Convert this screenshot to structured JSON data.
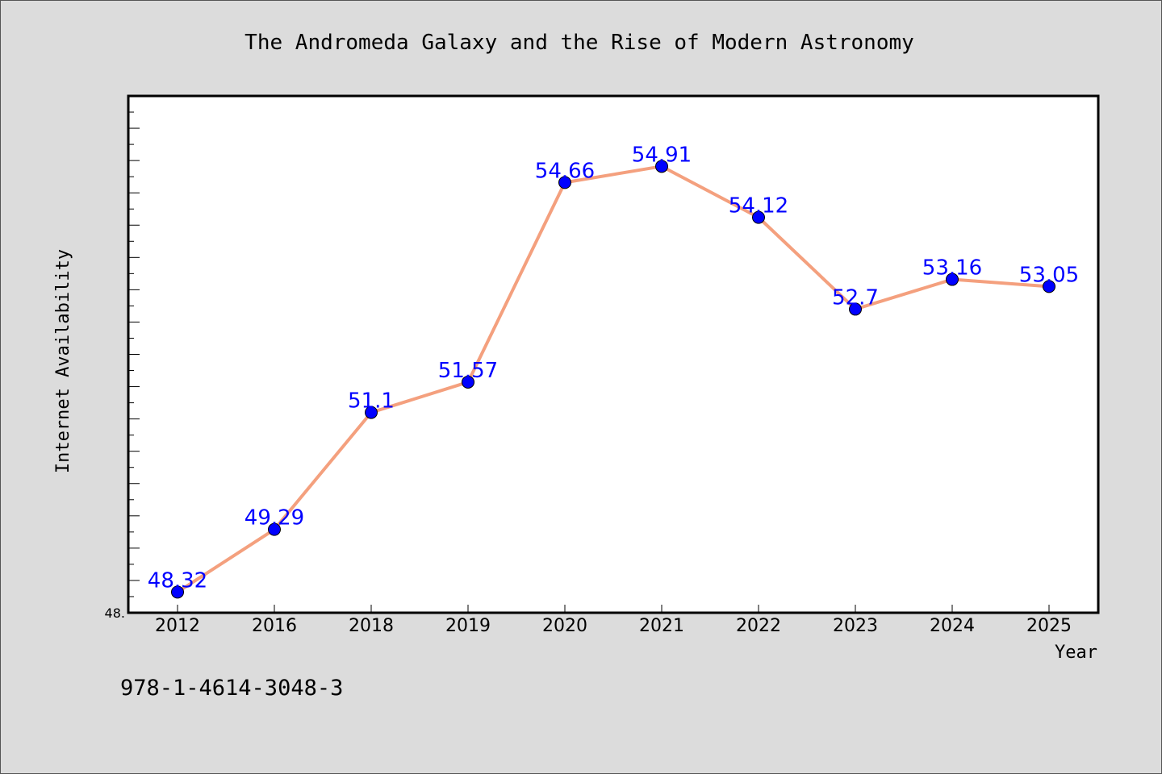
{
  "chart_data": {
    "type": "line",
    "title": "The Andromeda Galaxy and the Rise of Modern Astronomy",
    "xlabel": "Year",
    "ylabel": "Internet Availability",
    "categories": [
      "2012",
      "2016",
      "2018",
      "2019",
      "2020",
      "2021",
      "2022",
      "2023",
      "2024",
      "2025"
    ],
    "series": [
      {
        "values": [
          48.32,
          49.29,
          51.1,
          51.57,
          54.66,
          54.91,
          54.12,
          52.7,
          53.16,
          53.05
        ],
        "labels": [
          "48.32",
          "49.29",
          "51.1",
          "51.57",
          "54.66",
          "54.91",
          "54.12",
          "52.7",
          "53.16",
          "53.05"
        ]
      }
    ],
    "ylim": [
      48.0,
      56.0
    ],
    "ytick_labels": [
      "48."
    ],
    "grid": false,
    "colors": {
      "line": "#f4a07e",
      "marker": "#0000ff",
      "data_label": "#0000ff",
      "background": "#dcdcdc",
      "plot_area": "#ffffff"
    }
  },
  "footer": {
    "isbn": "978-1-4614-3048-3"
  }
}
